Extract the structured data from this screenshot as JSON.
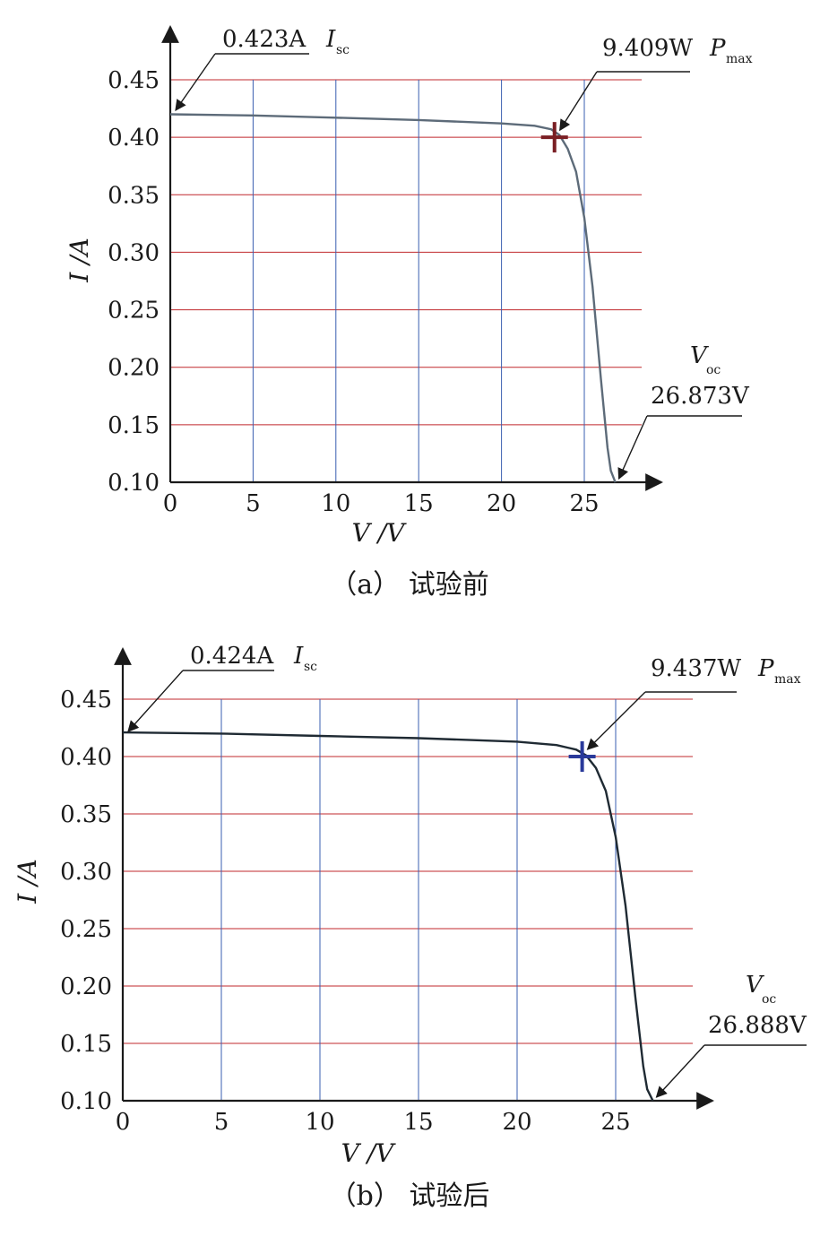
{
  "chart_data": [
    {
      "type": "line",
      "caption": "（a） 试验前",
      "xlabel": "V /V",
      "ylabel": "I /A",
      "xlim": [
        0,
        29.5
      ],
      "ylim": [
        0.1,
        0.47
      ],
      "xticks": [
        "0",
        "5",
        "10",
        "15",
        "20",
        "25"
      ],
      "yticks": [
        "0.45",
        "0.40",
        "0.35",
        "0.30",
        "0.25",
        "0.20",
        "0.15",
        "0.10"
      ],
      "grid": true,
      "gridColors": {
        "horizontal": "#c0282d",
        "vertical": "#3a5fb0"
      },
      "curveColor": "#5d6b79",
      "markerColor": "#7a1f24",
      "series": [
        {
          "x": [
            0,
            5,
            10,
            15,
            20,
            22,
            23,
            23.5,
            24,
            24.5,
            25,
            25.5,
            26,
            26.4,
            26.6,
            26.873
          ],
          "y": [
            0.42,
            0.419,
            0.417,
            0.415,
            0.412,
            0.41,
            0.407,
            0.402,
            0.39,
            0.37,
            0.33,
            0.27,
            0.19,
            0.13,
            0.11,
            0.1
          ]
        }
      ],
      "markers": [
        {
          "x": 23.2,
          "y": 0.4
        }
      ],
      "annotations": {
        "isc": {
          "value": "0.423A",
          "symbol": "I",
          "sub": "sc"
        },
        "pmax": {
          "value": "9.409W",
          "symbol": "P",
          "sub": "max"
        },
        "voc": {
          "symbol": "V",
          "sub": "oc",
          "value": "26.873V"
        }
      }
    },
    {
      "type": "line",
      "caption": "（b） 试验后",
      "xlabel": "V /V",
      "ylabel": "I /A",
      "xlim": [
        0,
        29.5
      ],
      "ylim": [
        0.1,
        0.47
      ],
      "xticks": [
        "0",
        "5",
        "10",
        "15",
        "20",
        "25"
      ],
      "yticks": [
        "0.45",
        "0.40",
        "0.35",
        "0.30",
        "0.25",
        "0.20",
        "0.15",
        "0.10"
      ],
      "grid": true,
      "gridColors": {
        "horizontal": "#c0282d",
        "vertical": "#3a5fb0"
      },
      "curveColor": "#1f2a33",
      "markerColor": "#2a3a9a",
      "series": [
        {
          "x": [
            0,
            5,
            10,
            15,
            20,
            22,
            23,
            23.5,
            24,
            24.5,
            25,
            25.5,
            26,
            26.4,
            26.6,
            26.888
          ],
          "y": [
            0.421,
            0.42,
            0.418,
            0.416,
            0.413,
            0.41,
            0.406,
            0.401,
            0.39,
            0.37,
            0.33,
            0.27,
            0.19,
            0.13,
            0.11,
            0.1
          ]
        }
      ],
      "markers": [
        {
          "x": 23.3,
          "y": 0.4
        }
      ],
      "annotations": {
        "isc": {
          "value": "0.424A",
          "symbol": "I",
          "sub": "sc"
        },
        "pmax": {
          "value": "9.437W",
          "symbol": "P",
          "sub": "max"
        },
        "voc": {
          "symbol": "V",
          "sub": "oc",
          "value": "26.888V"
        }
      }
    }
  ]
}
